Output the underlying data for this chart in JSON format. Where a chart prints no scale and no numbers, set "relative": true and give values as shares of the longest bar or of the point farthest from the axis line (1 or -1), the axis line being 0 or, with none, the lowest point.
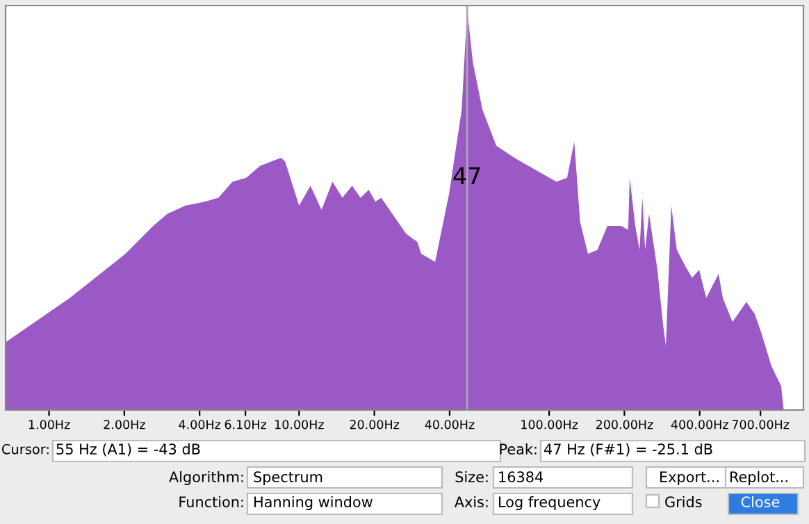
{
  "chart_data": {
    "type": "area",
    "relative": true,
    "x": [
      0.673,
      1.21,
      2.02,
      2.61,
      2.97,
      3.5,
      4.19,
      4.76,
      5.41,
      6.15,
      6.99,
      8.47,
      8.8,
      10.0,
      11.1,
      12.3,
      13.6,
      14.9,
      16.3,
      17.6,
      19.0,
      20.2,
      21.3,
      23.6,
      26.8,
      29.7,
      30.8,
      35.0,
      39.8,
      44.7,
      47,
      49.5,
      54.1,
      61.5,
      72.6,
      88.0,
      107,
      118,
      126,
      133,
      143,
      156,
      171,
      194,
      207,
      210,
      221,
      230,
      236,
      242,
      251,
      271,
      286,
      293,
      301,
      308,
      324,
      350,
      373,
      398,
      425,
      476,
      495,
      541,
      615,
      664,
      708,
      774,
      847,
      867
    ],
    "series": [
      {
        "color": "#9b59c5",
        "values": [
          0.17,
          0.28,
          0.39,
          0.46,
          0.49,
          0.51,
          0.52,
          0.53,
          0.57,
          0.58,
          0.61,
          0.63,
          0.62,
          0.51,
          0.56,
          0.5,
          0.57,
          0.53,
          0.56,
          0.53,
          0.55,
          0.52,
          0.53,
          0.49,
          0.44,
          0.42,
          0.39,
          0.37,
          0.54,
          0.75,
          1.0,
          0.87,
          0.75,
          0.66,
          0.63,
          0.6,
          0.57,
          0.58,
          0.67,
          0.47,
          0.39,
          0.4,
          0.46,
          0.46,
          0.45,
          0.58,
          0.46,
          0.4,
          0.53,
          0.4,
          0.49,
          0.35,
          0.21,
          0.16,
          0.35,
          0.51,
          0.4,
          0.36,
          0.33,
          0.35,
          0.28,
          0.34,
          0.28,
          0.22,
          0.27,
          0.24,
          0.19,
          0.11,
          0.06,
          0
        ]
      }
    ],
    "log": "x",
    "xlim": [
      0.67,
      1040
    ],
    "xticks": [
      {
        "value": 1,
        "label": "1.00Hz"
      },
      {
        "value": 2,
        "label": "2.00Hz"
      },
      {
        "value": 4,
        "label": "4.00Hz"
      },
      {
        "value": 6.1,
        "label": "6.10Hz"
      },
      {
        "value": 10,
        "label": "10.00Hz"
      },
      {
        "value": 20,
        "label": "20.00Hz"
      },
      {
        "value": 40,
        "label": "40.00Hz"
      },
      {
        "value": 100,
        "label": "100.00Hz"
      },
      {
        "value": 200,
        "label": "200.00Hz"
      },
      {
        "value": 400,
        "label": "400.00Hz"
      },
      {
        "value": 700,
        "label": "700.00Hz"
      }
    ],
    "ref_lines": [
      {
        "axis": "x",
        "value": 47,
        "label": "47",
        "color": "#aaaaaa"
      }
    ],
    "grid": false,
    "annotations": [
      "Cursor:",
      "55 Hz (A1) = -43 dB",
      "Peak:",
      "47 Hz (F#1) = -25.1 dB",
      "Algorithm:",
      "Spectrum",
      "Size:",
      "16384",
      "Export...",
      "Replot...",
      "Function:",
      "Hanning window",
      "Axis:",
      "Log frequency",
      "Grids",
      "Close"
    ]
  }
}
